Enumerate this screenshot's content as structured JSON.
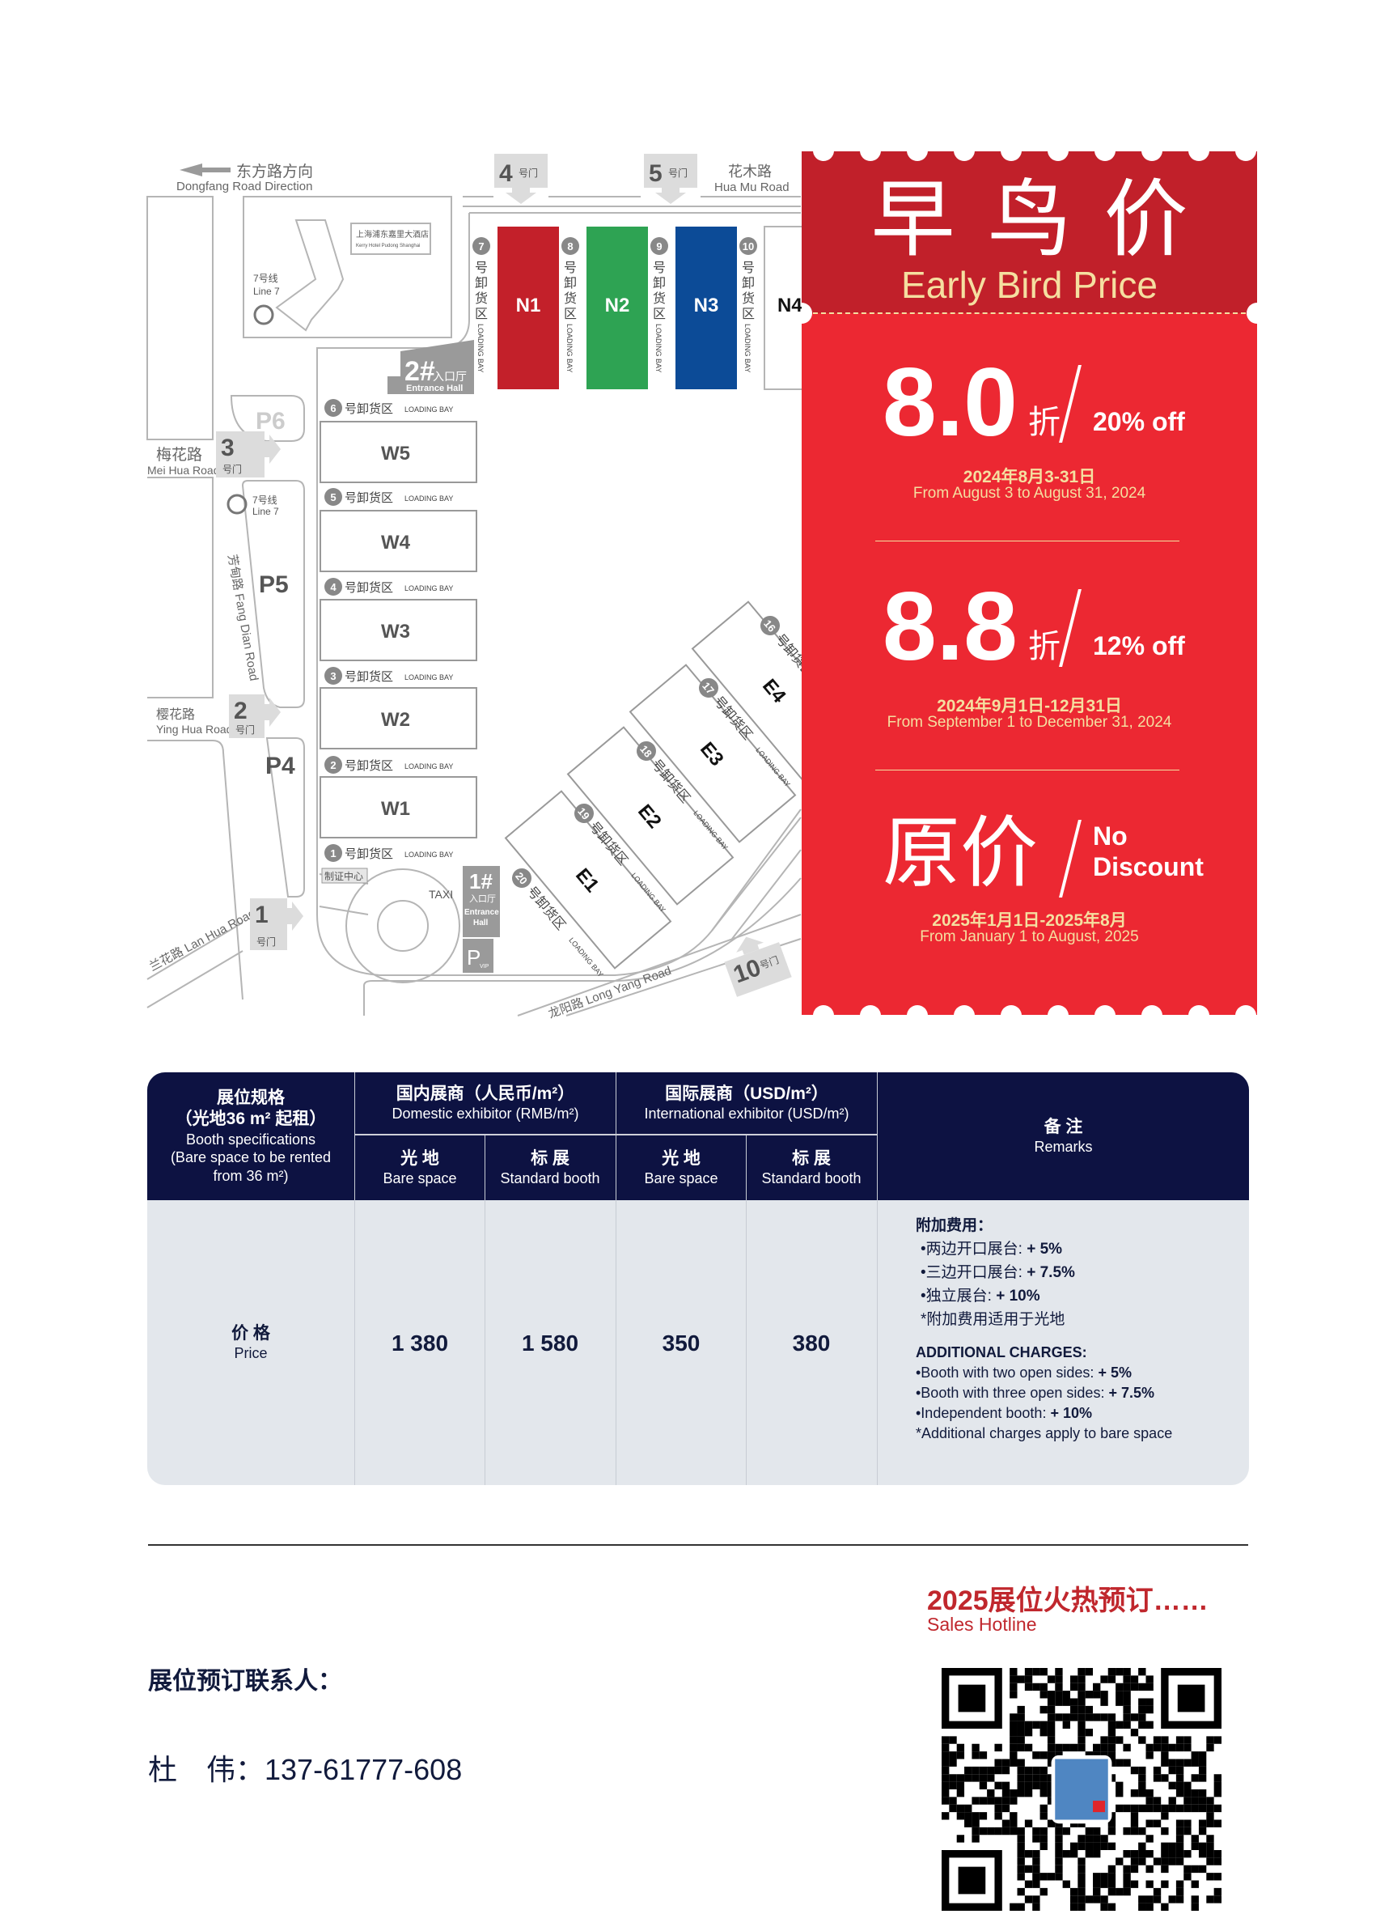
{
  "map": {
    "dongfang_zh": "东方路方向",
    "dongfang_en": "Dongfang Road Direction",
    "huamu_zh": "花木路",
    "huamu_en": "Hua Mu Road",
    "meihua_zh": "梅花路",
    "meihua_en": "Mei Hua Road",
    "yinghua_zh": "樱花路",
    "yinghua_en": "Ying Hua Road",
    "fangdian": "芳甸路 Fang Dian Road",
    "lanhua": "兰花路 Lan Hua Road",
    "longyang": "龙阳路 Long Yang Road",
    "hotel_zh": "上海浦东嘉里大酒店",
    "hotel_en": "Kerry Hotel Pudong Shanghai",
    "metro_zh": "7号线",
    "metro_en": "Line 7",
    "gate_suffix": "号门",
    "gates": [
      "1",
      "2",
      "3",
      "4",
      "5",
      "10"
    ],
    "parking": [
      "P6",
      "P5",
      "P4"
    ],
    "entrance2": {
      "num": "2#",
      "zh": "入口厅",
      "en": "Entrance Hall"
    },
    "entrance1": {
      "num": "1#",
      "zh": "入口厅",
      "en": "Entrance",
      "en2": "Hall"
    },
    "pvip": {
      "p": "P",
      "sub": "VIP"
    },
    "taxi": "TAXI",
    "cert_center": "制证中心",
    "north_halls": [
      {
        "name": "N1",
        "color": "#c3202a"
      },
      {
        "name": "N2",
        "color": "#2ea353"
      },
      {
        "name": "N3",
        "color": "#0c4b97"
      },
      {
        "name": "N4",
        "color": "#ffffff"
      }
    ],
    "west_halls": [
      "W5",
      "W4",
      "W3",
      "W2",
      "W1"
    ],
    "east_halls": [
      "E1",
      "E2",
      "E3",
      "E4"
    ],
    "bay_zh": "号卸货区",
    "bay_zh_vertical": "号卸货区",
    "bay_en": "LOADING BAY",
    "west_bays": [
      "6",
      "5",
      "4",
      "3",
      "2",
      "1"
    ],
    "north_bays": [
      "7",
      "8",
      "9",
      "10"
    ],
    "east_bays": [
      "20",
      "19",
      "18",
      "17",
      "16"
    ]
  },
  "promo": {
    "title_zh": "早鸟价",
    "title_en": "Early Bird Price",
    "zhe": "折",
    "tiers": [
      {
        "big": "8.0",
        "off": "20% off",
        "date_zh": "2024年8月3-31日",
        "date_en": "From August 3 to August 31, 2024"
      },
      {
        "big": "8.8",
        "off": "12% off",
        "date_zh": "2024年9月1日-12月31日",
        "date_en": "From September 1 to December 31, 2024"
      },
      {
        "big": "原价",
        "off1": "No",
        "off2": "Discount",
        "date_zh": "2025年1月1日-2025年8月",
        "date_en": "From January 1 to August, 2025"
      }
    ],
    "colors": {
      "band": "#c1202a",
      "main": "#ec2832",
      "accent": "#f5dfa0"
    }
  },
  "table": {
    "spec_zh1": "展位规格",
    "spec_zh2": "（光地36 m² 起租）",
    "spec_en1": "Booth specifications",
    "spec_en2": "(Bare space to be rented",
    "spec_en3": "from 36 m²)",
    "domestic_zh": "国内展商（人民币/m²）",
    "domestic_en": "Domestic exhibitor (RMB/m²)",
    "intl_zh": "国际展商（USD/m²）",
    "intl_en": "International exhibitor (USD/m²)",
    "remarks_zh": "备 注",
    "remarks_en": "Remarks",
    "sub": [
      {
        "zh": "光 地",
        "en": "Bare space"
      },
      {
        "zh": "标 展",
        "en": "Standard booth"
      },
      {
        "zh": "光 地",
        "en": "Bare space"
      },
      {
        "zh": "标 展",
        "en": "Standard booth"
      }
    ],
    "row_zh": "价 格",
    "row_en": "Price",
    "prices": [
      "1 380",
      "1 580",
      "350",
      "380"
    ],
    "remarks": {
      "zh_title": "附加费用：",
      "zh_items": [
        {
          "label": "•两边开口展台: ",
          "value": "+ 5%"
        },
        {
          "label": "•三边开口展台: ",
          "value": "+ 7.5%"
        },
        {
          "label": "•独立展台: ",
          "value": "+ 10%"
        }
      ],
      "zh_note": "*附加费用适用于光地",
      "en_title": "ADDITIONAL CHARGES:",
      "en_items": [
        {
          "label": "•Booth with two open sides: ",
          "value": "+ 5%"
        },
        {
          "label": "•Booth with three open sides: ",
          "value": "+ 7.5%"
        },
        {
          "label": "•Independent booth: ",
          "value": "+ 10%"
        }
      ],
      "en_note": "*Additional charges apply to bare space"
    },
    "colors": {
      "header": "#0d1242",
      "body": "#e3e7ec"
    }
  },
  "footer": {
    "hot": "2025展位火热预订……",
    "hotline": "Sales Hotline",
    "contact_label": "展位预订联系人：",
    "contact": "杜　伟：137-61777-608"
  }
}
